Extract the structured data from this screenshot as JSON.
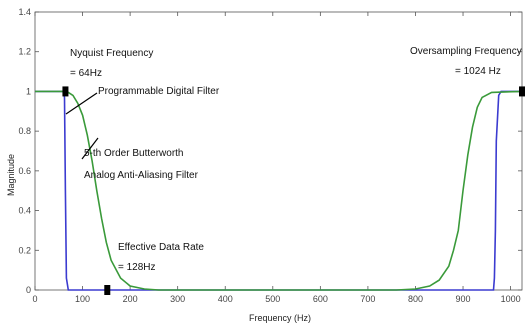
{
  "chart_data": {
    "type": "line",
    "xlabel": "Frequency (Hz)",
    "ylabel": "Magnitude",
    "xlim": [
      0,
      1024
    ],
    "ylim": [
      0,
      1.4
    ],
    "x_ticks": [
      0,
      100,
      200,
      300,
      400,
      500,
      600,
      700,
      800,
      900,
      1000
    ],
    "y_ticks": [
      0,
      0.2,
      0.4,
      0.6,
      0.8,
      1,
      1.2,
      1.4
    ],
    "grid": false,
    "colors": {
      "digital": "#3b3bd0",
      "analog": "#3a9a3a",
      "marker": "#000000"
    },
    "series": [
      {
        "x": [
          0,
          55,
          60,
          62,
          64,
          66,
          70,
          80,
          964,
          966,
          968,
          970,
          975,
          980,
          1024
        ],
        "y": [
          1,
          1,
          1,
          0.97,
          0.5,
          0.06,
          0.0,
          0.0,
          0.0,
          0.06,
          0.3,
          0.75,
          0.98,
          1,
          1
        ]
      },
      {
        "x": [
          0,
          40,
          60,
          70,
          80,
          90,
          100,
          110,
          120,
          130,
          140,
          150,
          160,
          180,
          200,
          230,
          260,
          760,
          800,
          830,
          850,
          870,
          880,
          890,
          900,
          910,
          920,
          930,
          940,
          960,
          1024
        ],
        "y": [
          1,
          1,
          1,
          0.995,
          0.98,
          0.94,
          0.88,
          0.78,
          0.65,
          0.5,
          0.36,
          0.24,
          0.15,
          0.06,
          0.02,
          0.005,
          0,
          0,
          0.005,
          0.02,
          0.05,
          0.12,
          0.2,
          0.3,
          0.5,
          0.68,
          0.82,
          0.92,
          0.97,
          0.995,
          1
        ]
      }
    ],
    "markers": [
      {
        "x": 64,
        "y": 1
      },
      {
        "x": 1024,
        "y": 1
      },
      {
        "x": 152,
        "y": 0
      }
    ],
    "annotations": {
      "nyquist_line1": "Nyquist Frequency",
      "nyquist_line2": "= 64Hz",
      "oversampling_line1": "Oversampling Frequency",
      "oversampling_line2": "= 1024 Hz",
      "digital_filter": "Programmable Digital Filter",
      "analog_line1": "5-th Order Butterworth",
      "analog_line2": "Analog Anti-Aliasing Filter",
      "data_rate_line1": "Effective Data Rate",
      "data_rate_line2": "= 128Hz"
    }
  }
}
